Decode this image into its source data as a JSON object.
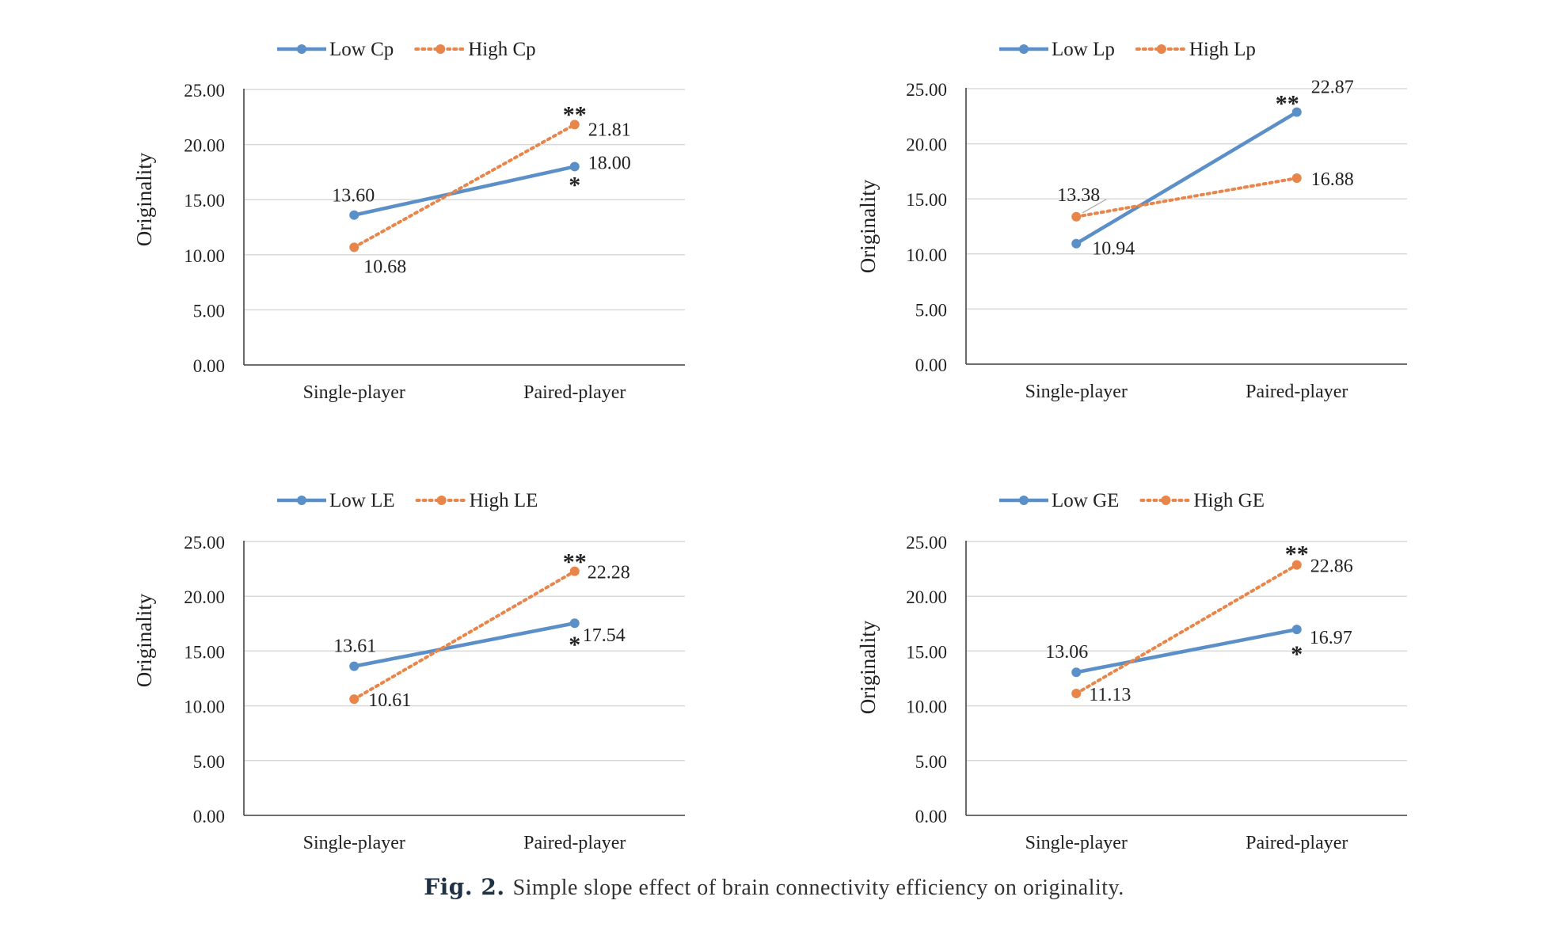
{
  "figure": {
    "caption_label": "Fig. 2.",
    "caption_text": "Simple slope effect of brain connectivity efficiency on originality."
  },
  "colors": {
    "low": "#5b8fc7",
    "high": "#e8854a",
    "grid": "#d9d9d9",
    "axis": "#595959"
  },
  "chart_data": [
    {
      "type": "line",
      "categories": [
        "Single-player",
        "Paired-player"
      ],
      "ylabel": "Originality",
      "ylim": [
        0,
        25
      ],
      "yticks": [
        "0.00",
        "5.00",
        "10.00",
        "15.00",
        "20.00",
        "25.00"
      ],
      "grid": true,
      "legend": "top",
      "series": [
        {
          "name": "Low Cp",
          "values": [
            13.6,
            18.0
          ],
          "labels": [
            "13.60",
            "18.00"
          ],
          "style": "solid"
        },
        {
          "name": "High Cp",
          "values": [
            10.68,
            21.81
          ],
          "labels": [
            "10.68",
            "21.81"
          ],
          "style": "dotted"
        }
      ],
      "annotations": [
        "*",
        "**"
      ]
    },
    {
      "type": "line",
      "categories": [
        "Single-player",
        "Paired-player"
      ],
      "ylabel": "Originality",
      "ylim": [
        0,
        25
      ],
      "yticks": [
        "0.00",
        "5.00",
        "10.00",
        "15.00",
        "20.00",
        "25.00"
      ],
      "grid": true,
      "legend": "top",
      "series": [
        {
          "name": "Low Lp",
          "values": [
            10.94,
            22.87
          ],
          "labels": [
            "10.94",
            "22.87"
          ],
          "style": "solid"
        },
        {
          "name": "High Lp",
          "values": [
            13.38,
            16.88
          ],
          "labels": [
            "13.38",
            "16.88"
          ],
          "style": "dotted"
        }
      ],
      "annotations": [
        "**"
      ]
    },
    {
      "type": "line",
      "categories": [
        "Single-player",
        "Paired-player"
      ],
      "ylabel": "Originality",
      "ylim": [
        0,
        25
      ],
      "yticks": [
        "0.00",
        "5.00",
        "10.00",
        "15.00",
        "20.00",
        "25.00"
      ],
      "grid": true,
      "legend": "top",
      "series": [
        {
          "name": "Low LE",
          "values": [
            13.61,
            17.54
          ],
          "labels": [
            "13.61",
            "17.54"
          ],
          "style": "solid"
        },
        {
          "name": "High LE",
          "values": [
            10.61,
            22.28
          ],
          "labels": [
            "10.61",
            "22.28"
          ],
          "style": "dotted"
        }
      ],
      "annotations": [
        "*",
        "**"
      ]
    },
    {
      "type": "line",
      "categories": [
        "Single-player",
        "Paired-player"
      ],
      "ylabel": "Originality",
      "ylim": [
        0,
        25
      ],
      "yticks": [
        "0.00",
        "5.00",
        "10.00",
        "15.00",
        "20.00",
        "25.00"
      ],
      "grid": true,
      "legend": "top",
      "series": [
        {
          "name": "Low GE",
          "values": [
            13.06,
            16.97
          ],
          "labels": [
            "13.06",
            "16.97"
          ],
          "style": "solid"
        },
        {
          "name": "High GE",
          "values": [
            11.13,
            22.86
          ],
          "labels": [
            "11.13",
            "22.86"
          ],
          "style": "dotted"
        }
      ],
      "annotations": [
        "*",
        "**"
      ]
    }
  ]
}
